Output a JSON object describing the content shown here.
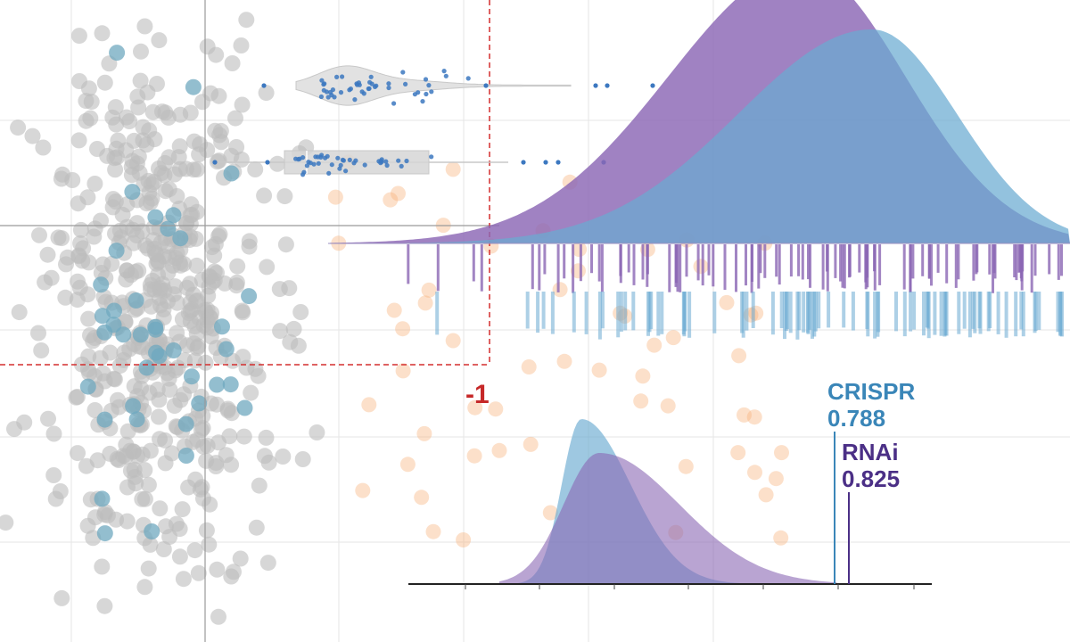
{
  "colors": {
    "background": "#ffffff",
    "grid": "#e6e6e6",
    "crosshair": "#9a9a9a",
    "scatter_gray": "#bdbdbd",
    "scatter_blue": "#6fa8bf",
    "scatter_orange": "#f7b27a",
    "threshold": "#d32f2f",
    "violin_fill": "#d6d6d6",
    "violin_points": "#3c78c0",
    "crispr": "#6aaad1",
    "rnai": "#8b67b4",
    "crispr_text": "#3a86b8",
    "rnai_text": "#4b2f86"
  },
  "chart_data": [
    {
      "type": "scatter",
      "title": "",
      "threshold_value": -1,
      "threshold_label": "-1",
      "clusters": [
        {
          "name": "gray",
          "count": 520,
          "x_center": 0.0,
          "x_spread": 1.0,
          "y_center": 0.0,
          "y_spread": 1.0
        },
        {
          "name": "blue",
          "count": 40,
          "x_center": 0.0,
          "x_spread": 1.0,
          "y_center": 0.0,
          "y_spread": 1.0
        },
        {
          "name": "orange",
          "count": 60,
          "x_center": 0.0,
          "x_spread": 1.0,
          "y_center": 0.0,
          "y_spread": 1.0
        }
      ]
    },
    {
      "type": "violin",
      "title": "",
      "points_count": 45
    },
    {
      "type": "box",
      "title": "",
      "points_count": 40
    },
    {
      "type": "area",
      "title": "",
      "series": [
        {
          "name": "RNAi",
          "mean": 0.71,
          "sd": 0.17,
          "rug_count": 95
        },
        {
          "name": "CRISPR",
          "mean": 0.78,
          "sd": 0.16,
          "rug_count": 85
        }
      ]
    },
    {
      "type": "area",
      "title": "",
      "xlim": [
        0,
        1.0
      ],
      "series": [
        {
          "name": "CRISPR",
          "value_label": "0.788",
          "value": 0.788,
          "mode": 0.36
        },
        {
          "name": "RNAi",
          "value_label": "0.825",
          "value": 0.825,
          "mode": 0.41
        }
      ],
      "ticks": [
        0.05,
        0.18,
        0.31,
        0.44,
        0.57,
        0.7,
        0.83,
        0.96
      ]
    }
  ],
  "annotations": {
    "crispr_name": "CRISPR",
    "crispr_value": "0.788",
    "rnai_name": "RNAi",
    "rnai_value": "0.825",
    "threshold": "-1"
  }
}
